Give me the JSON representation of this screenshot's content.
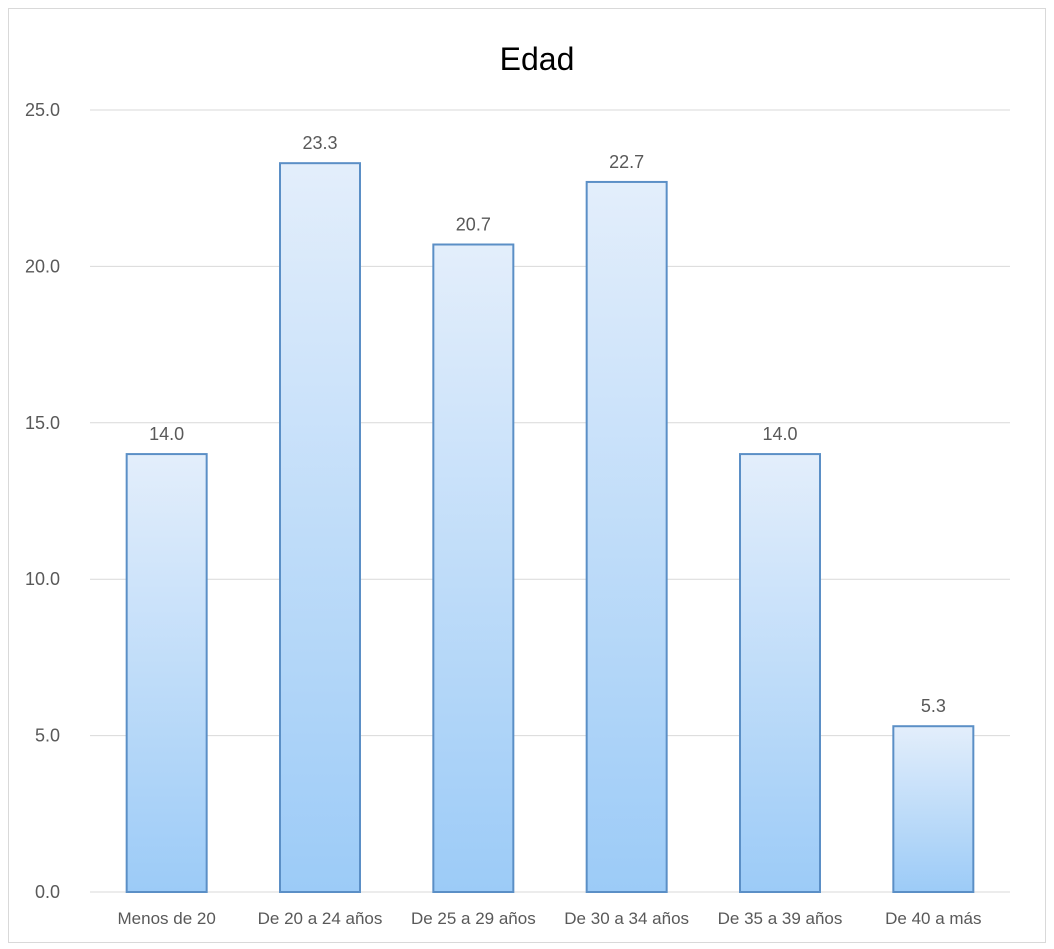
{
  "chart_data": {
    "type": "bar",
    "title": "Edad",
    "xlabel": "",
    "ylabel": "",
    "categories": [
      "Menos de 20",
      "De 20 a 24 años",
      "De 25 a 29 años",
      "De 30 a 34 años",
      "De 35 a 39 años",
      "De 40 a más"
    ],
    "values": [
      14.0,
      23.3,
      20.7,
      22.7,
      14.0,
      5.3
    ],
    "value_labels": [
      "14.0",
      "23.3",
      "20.7",
      "22.7",
      "14.0",
      "5.3"
    ],
    "ylim": [
      0,
      25
    ],
    "yticks": [
      "0.0",
      "5.0",
      "10.0",
      "15.0",
      "20.0",
      "25.0"
    ],
    "grid": true,
    "legend": "none",
    "colors": {
      "bar_top": "#e3eefb",
      "bar_bottom": "#9ccbf7",
      "bar_border": "#5b8fc6",
      "gridline": "#d9d9d9",
      "axis": "#d9d9d9"
    }
  }
}
